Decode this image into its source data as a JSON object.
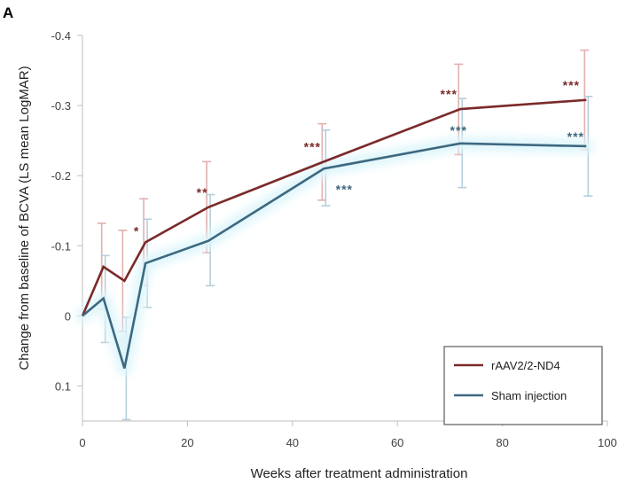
{
  "panel_label": "A",
  "colors": {
    "treated": "#7b2a2a",
    "sham": "#3d6880",
    "treated_error": "#e2b0ad",
    "sham_error": "#b5cedc",
    "sham_glow": "#dff6fb",
    "axis": "#bfbfbf",
    "legend_border": "#5a5a5a"
  },
  "chart_data": {
    "type": "line",
    "xlabel": "Weeks after treatment administration",
    "ylabel": "Change from baseline of BCVA (LS mean LogMAR)",
    "xlim": [
      0,
      100
    ],
    "ylim": [
      0.15,
      -0.4
    ],
    "y_inverted": true,
    "x_ticks": [
      0,
      20,
      40,
      60,
      80,
      100
    ],
    "x_tick_labels": [
      "0",
      "20",
      "40",
      "60",
      "80",
      "100"
    ],
    "y_ticks": [
      -0.4,
      -0.3,
      -0.2,
      -0.1,
      0,
      0.1
    ],
    "y_tick_labels": [
      "-0.4",
      "-0.3",
      "-0.2",
      "-0.1",
      "0",
      "0.1"
    ],
    "legend_position": "bottom-right",
    "grid": false,
    "series": [
      {
        "name": "rAAV2/2-ND4",
        "key": "treated",
        "x": [
          0,
          4,
          8,
          12,
          24,
          46,
          72,
          96
        ],
        "y": [
          0,
          -0.07,
          -0.05,
          -0.105,
          -0.155,
          -0.22,
          -0.295,
          -0.308
        ],
        "err_low": [
          null,
          -0.01,
          0.022,
          -0.043,
          -0.09,
          -0.165,
          -0.23,
          -0.237
        ],
        "err_high": [
          null,
          -0.132,
          -0.122,
          -0.167,
          -0.22,
          -0.274,
          -0.359,
          -0.379
        ],
        "annotations": [
          {
            "x": 12,
            "text": "*"
          },
          {
            "x": 24,
            "text": "**"
          },
          {
            "x": 46,
            "text": "***"
          },
          {
            "x": 72,
            "text": "***"
          },
          {
            "x": 96,
            "text": "***"
          }
        ]
      },
      {
        "name": "Sham injection",
        "key": "sham",
        "x": [
          0,
          4,
          8,
          12,
          24,
          46,
          72,
          96
        ],
        "y": [
          0,
          -0.025,
          0.075,
          -0.075,
          -0.107,
          -0.21,
          -0.246,
          -0.242
        ],
        "err_low": [
          null,
          0.038,
          0.148,
          -0.012,
          -0.043,
          -0.157,
          -0.183,
          -0.171
        ],
        "err_high": [
          null,
          -0.086,
          0.002,
          -0.138,
          -0.173,
          -0.265,
          -0.31,
          -0.313
        ],
        "annotations": [
          {
            "x": 46,
            "text": "***"
          },
          {
            "x": 72,
            "text": "***"
          },
          {
            "x": 96,
            "text": "***"
          }
        ]
      }
    ]
  }
}
